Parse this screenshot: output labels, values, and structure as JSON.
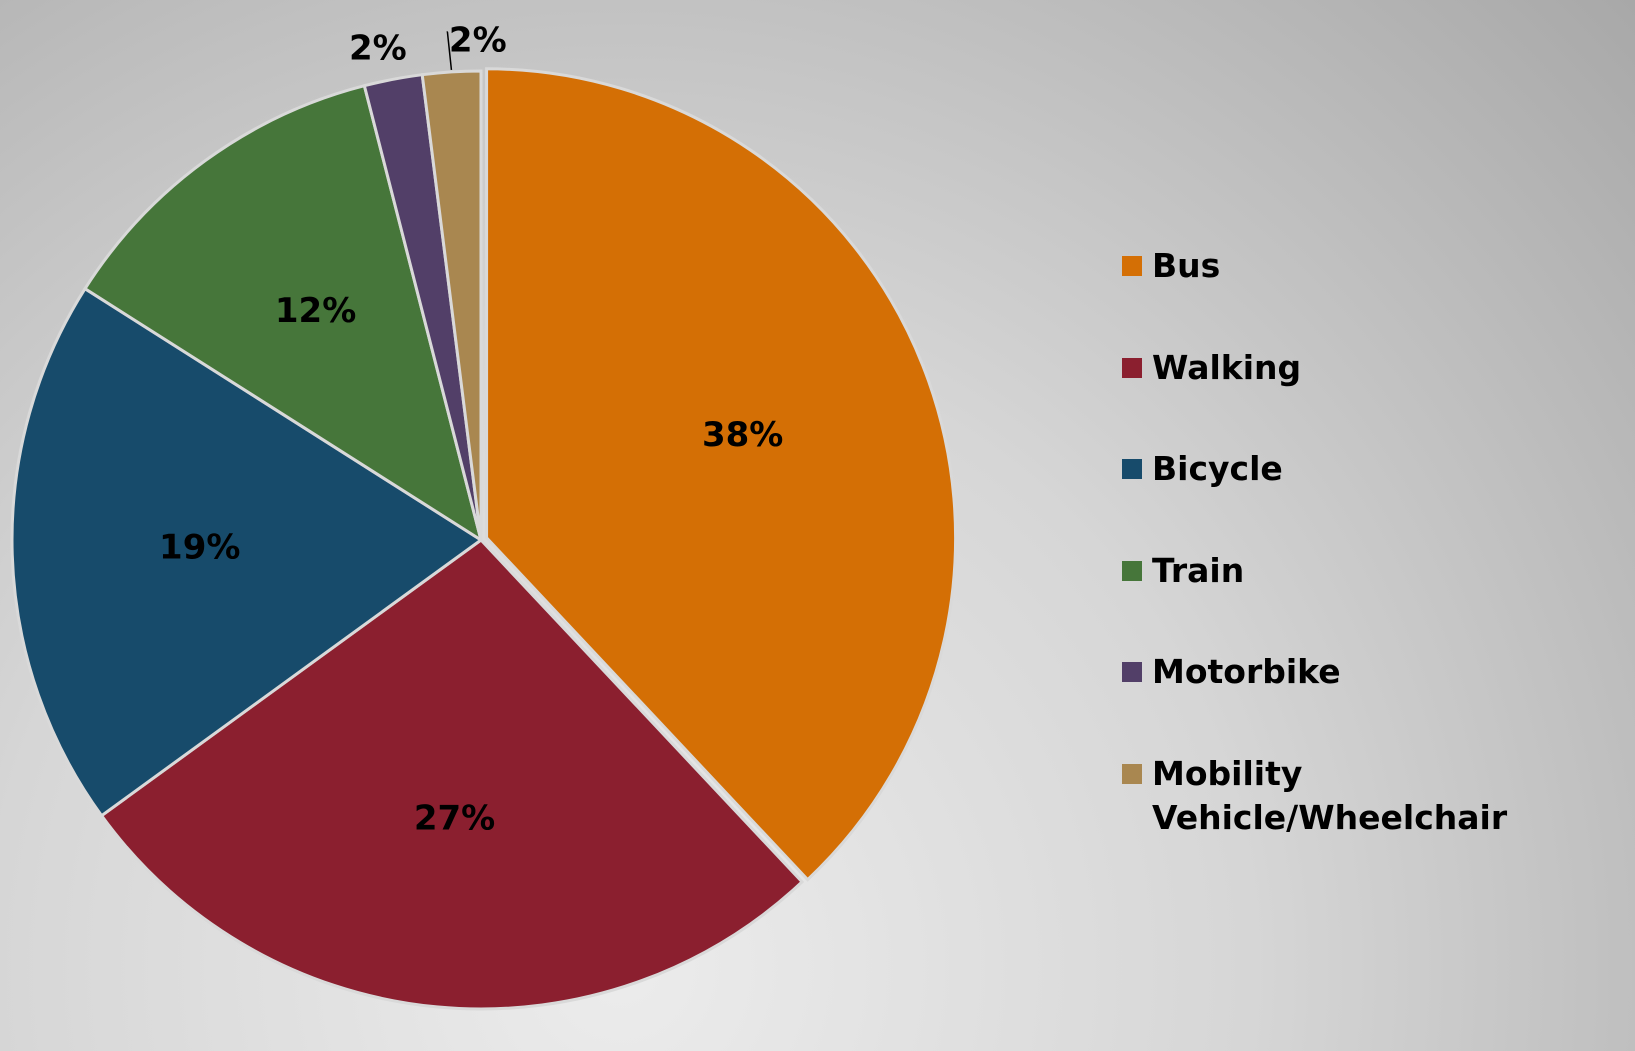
{
  "chart_data": {
    "type": "pie",
    "categories": [
      "Bus",
      "Walking",
      "Bicycle",
      "Train",
      "Motorbike",
      "Mobility Vehicle/Wheelchair"
    ],
    "values": [
      38,
      27,
      19,
      12,
      2,
      2
    ],
    "value_labels": [
      "38%",
      "27%",
      "19%",
      "12%",
      "2%",
      "2%"
    ],
    "colors": [
      "#d46f05",
      "#8b1f2f",
      "#174b6b",
      "#46763a",
      "#523f68",
      "#a98750"
    ],
    "legend": "right"
  }
}
